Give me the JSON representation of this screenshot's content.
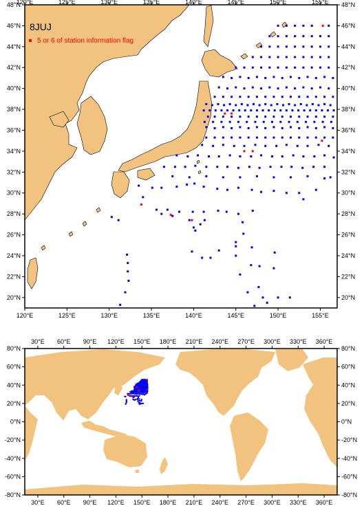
{
  "colors": {
    "land": "#f2c27f",
    "ocean": "#ffffff",
    "station": "#0000ff",
    "flagged": "#ff0000",
    "frame": "#000000"
  },
  "regional_map": {
    "title": "8JUJ",
    "legend_label": "5 or 6 of station information flag",
    "lon_ticks": [
      "120°E",
      "125°E",
      "130°E",
      "135°E",
      "140°E",
      "145°E",
      "150°E",
      "155°E"
    ],
    "lat_ticks": [
      "20°N",
      "22°N",
      "24°N",
      "26°N",
      "28°N",
      "30°N",
      "32°N",
      "34°N",
      "36°N",
      "38°N",
      "40°N",
      "42°N",
      "44°N",
      "46°N",
      "48°N"
    ],
    "lon_range": [
      120,
      157
    ],
    "lat_range": [
      19,
      48
    ],
    "stations_good": [
      [
        130.3,
        27.7
      ],
      [
        131.1,
        27.4
      ],
      [
        132.1,
        24.1
      ],
      [
        132.2,
        23.3
      ],
      [
        132.2,
        22.5
      ],
      [
        132.3,
        21.6
      ],
      [
        131.9,
        20.5
      ],
      [
        131.3,
        19.3
      ],
      [
        133.5,
        30.7
      ],
      [
        135.1,
        30.5
      ],
      [
        136.2,
        30.5
      ],
      [
        138.0,
        30.6
      ],
      [
        139.2,
        30.8
      ],
      [
        140.1,
        30.9
      ],
      [
        141.2,
        30.6
      ],
      [
        142.8,
        30.4
      ],
      [
        144.0,
        30.3
      ],
      [
        145.3,
        30.5
      ],
      [
        134.0,
        29.6
      ],
      [
        135.6,
        28.4
      ],
      [
        136.9,
        28.4
      ],
      [
        138.3,
        28.2
      ],
      [
        139.9,
        28.2
      ],
      [
        141.2,
        28.2
      ],
      [
        142.9,
        28.3
      ],
      [
        143.9,
        28.2
      ],
      [
        145.3,
        28.0
      ],
      [
        147.0,
        28.3
      ],
      [
        136.2,
        28.0
      ],
      [
        137.5,
        27.8
      ],
      [
        139.5,
        27.4
      ],
      [
        140.0,
        26.7
      ],
      [
        140.8,
        27.0
      ],
      [
        140.2,
        26.4
      ],
      [
        141.3,
        27.4
      ],
      [
        145.8,
        27.2
      ],
      [
        145.9,
        26.1
      ],
      [
        145.0,
        25.3
      ],
      [
        145.0,
        24.9
      ],
      [
        145.0,
        24.0
      ],
      [
        143.0,
        24.5
      ],
      [
        142.0,
        23.8
      ],
      [
        141.0,
        23.8
      ],
      [
        139.8,
        24.4
      ],
      [
        146.9,
        24.8
      ],
      [
        146.8,
        23.1
      ],
      [
        147.8,
        23.0
      ],
      [
        147.7,
        21.0
      ],
      [
        148.2,
        20.0
      ],
      [
        148.7,
        19.5
      ],
      [
        149.6,
        24.3
      ],
      [
        149.5,
        22.8
      ],
      [
        151.4,
        20.0
      ],
      [
        150.0,
        20.0
      ],
      [
        147.2,
        19.2
      ],
      [
        146.4,
        20.5
      ],
      [
        145.5,
        22.2
      ],
      [
        153.0,
        29.4
      ],
      [
        154.5,
        30.3
      ],
      [
        156.2,
        31.5
      ],
      [
        152.5,
        30.0
      ],
      [
        151.0,
        30.0
      ],
      [
        149.5,
        30.2
      ],
      [
        148.0,
        30.1
      ],
      [
        146.9,
        30.3
      ],
      [
        136.5,
        32.5
      ],
      [
        137.8,
        32.5
      ],
      [
        139.0,
        32.5
      ],
      [
        140.2,
        32.6
      ],
      [
        141.5,
        32.5
      ],
      [
        142.8,
        32.5
      ],
      [
        144.0,
        32.5
      ],
      [
        145.3,
        32.4
      ],
      [
        146.6,
        32.5
      ],
      [
        147.8,
        32.4
      ],
      [
        149.1,
        32.5
      ],
      [
        150.4,
        32.5
      ],
      [
        151.6,
        32.5
      ],
      [
        152.9,
        32.4
      ],
      [
        154.2,
        32.5
      ],
      [
        155.5,
        32.5
      ],
      [
        137.5,
        31.6
      ],
      [
        139.5,
        31.5
      ],
      [
        141.5,
        31.6
      ],
      [
        143.5,
        31.5
      ],
      [
        145.5,
        31.5
      ],
      [
        147.5,
        31.6
      ],
      [
        149.5,
        31.5
      ],
      [
        151.5,
        31.5
      ],
      [
        153.5,
        31.6
      ],
      [
        155.5,
        31.4
      ],
      [
        138.0,
        33.6
      ],
      [
        139.3,
        33.5
      ],
      [
        140.5,
        33.6
      ],
      [
        141.8,
        33.5
      ],
      [
        143.0,
        33.5
      ],
      [
        144.3,
        33.6
      ],
      [
        145.5,
        33.5
      ],
      [
        146.8,
        33.5
      ],
      [
        148.0,
        33.6
      ],
      [
        149.3,
        33.5
      ],
      [
        150.5,
        33.5
      ],
      [
        151.8,
        33.6
      ],
      [
        153.0,
        33.5
      ],
      [
        154.3,
        33.5
      ],
      [
        155.5,
        33.6
      ],
      [
        156.6,
        33.4
      ],
      [
        141.0,
        34.6
      ],
      [
        142.3,
        34.5
      ],
      [
        143.5,
        34.6
      ],
      [
        144.8,
        34.5
      ],
      [
        146.0,
        34.5
      ],
      [
        147.3,
        34.6
      ],
      [
        148.5,
        34.5
      ],
      [
        149.8,
        34.5
      ],
      [
        151.0,
        34.6
      ],
      [
        152.3,
        34.5
      ],
      [
        153.5,
        34.5
      ],
      [
        154.8,
        34.6
      ],
      [
        156.0,
        34.5
      ],
      [
        141.5,
        35.3
      ],
      [
        142.5,
        35.3
      ],
      [
        143.5,
        35.3
      ],
      [
        144.5,
        35.3
      ],
      [
        145.5,
        35.3
      ],
      [
        146.5,
        35.3
      ],
      [
        147.5,
        35.3
      ],
      [
        148.5,
        35.3
      ],
      [
        149.5,
        35.3
      ],
      [
        150.5,
        35.3
      ],
      [
        151.5,
        35.3
      ],
      [
        152.5,
        35.3
      ],
      [
        153.5,
        35.3
      ],
      [
        154.5,
        35.3
      ],
      [
        155.5,
        35.3
      ],
      [
        156.5,
        35.3
      ],
      [
        141.5,
        36.3
      ],
      [
        142.5,
        36.2
      ],
      [
        143.5,
        36.3
      ],
      [
        144.5,
        36.2
      ],
      [
        145.5,
        36.3
      ],
      [
        146.5,
        36.2
      ],
      [
        147.5,
        36.3
      ],
      [
        148.5,
        36.2
      ],
      [
        149.5,
        36.3
      ],
      [
        150.5,
        36.2
      ],
      [
        151.5,
        36.3
      ],
      [
        152.5,
        36.2
      ],
      [
        153.5,
        36.3
      ],
      [
        154.5,
        36.2
      ],
      [
        155.5,
        36.3
      ],
      [
        156.5,
        36.2
      ],
      [
        141.3,
        36.8
      ],
      [
        142.3,
        36.8
      ],
      [
        143.3,
        36.8
      ],
      [
        144.3,
        36.8
      ],
      [
        145.3,
        36.8
      ],
      [
        146.3,
        36.8
      ],
      [
        147.3,
        36.8
      ],
      [
        148.3,
        36.8
      ],
      [
        149.3,
        36.8
      ],
      [
        150.3,
        36.8
      ],
      [
        151.3,
        36.8
      ],
      [
        152.3,
        36.8
      ],
      [
        153.3,
        36.8
      ],
      [
        154.3,
        36.8
      ],
      [
        155.3,
        36.8
      ],
      [
        156.3,
        36.8
      ],
      [
        141.7,
        37.3
      ],
      [
        142.5,
        37.3
      ],
      [
        143.5,
        37.3
      ],
      [
        144.5,
        37.3
      ],
      [
        145.5,
        37.3
      ],
      [
        146.5,
        37.3
      ],
      [
        147.5,
        37.3
      ],
      [
        148.5,
        37.3
      ],
      [
        149.5,
        37.3
      ],
      [
        150.5,
        37.3
      ],
      [
        151.5,
        37.3
      ],
      [
        152.5,
        37.3
      ],
      [
        153.5,
        37.3
      ],
      [
        154.5,
        37.3
      ],
      [
        155.5,
        37.3
      ],
      [
        156.5,
        37.3
      ],
      [
        141.2,
        37.9
      ],
      [
        141.9,
        37.9
      ],
      [
        142.6,
        37.9
      ],
      [
        143.3,
        37.9
      ],
      [
        144.0,
        37.9
      ],
      [
        144.7,
        37.9
      ],
      [
        145.4,
        37.9
      ],
      [
        146.1,
        37.9
      ],
      [
        146.8,
        37.9
      ],
      [
        147.5,
        37.9
      ],
      [
        148.2,
        37.9
      ],
      [
        148.9,
        37.9
      ],
      [
        149.6,
        37.9
      ],
      [
        150.3,
        37.9
      ],
      [
        151.0,
        37.9
      ],
      [
        151.7,
        37.9
      ],
      [
        152.4,
        37.9
      ],
      [
        153.1,
        37.9
      ],
      [
        153.8,
        37.9
      ],
      [
        154.5,
        37.9
      ],
      [
        155.2,
        37.9
      ],
      [
        155.9,
        37.9
      ],
      [
        156.6,
        37.9
      ],
      [
        141.5,
        38.5
      ],
      [
        142.2,
        38.4
      ],
      [
        142.9,
        38.5
      ],
      [
        143.6,
        38.4
      ],
      [
        144.3,
        38.5
      ],
      [
        145.0,
        38.4
      ],
      [
        145.7,
        38.5
      ],
      [
        146.4,
        38.4
      ],
      [
        147.1,
        38.5
      ],
      [
        147.8,
        38.4
      ],
      [
        148.5,
        38.5
      ],
      [
        149.2,
        38.4
      ],
      [
        149.9,
        38.5
      ],
      [
        150.6,
        38.4
      ],
      [
        151.3,
        38.5
      ],
      [
        152.0,
        38.4
      ],
      [
        152.7,
        38.5
      ],
      [
        153.4,
        38.4
      ],
      [
        154.1,
        38.5
      ],
      [
        154.8,
        38.4
      ],
      [
        155.5,
        38.5
      ],
      [
        156.2,
        38.4
      ],
      [
        142.5,
        39.2
      ],
      [
        143.5,
        39.2
      ],
      [
        144.5,
        39.2
      ],
      [
        145.5,
        39.2
      ],
      [
        146.5,
        39.2
      ],
      [
        147.5,
        39.2
      ],
      [
        148.5,
        39.2
      ],
      [
        149.5,
        39.2
      ],
      [
        150.5,
        39.2
      ],
      [
        151.5,
        39.2
      ],
      [
        152.5,
        39.2
      ],
      [
        153.5,
        39.2
      ],
      [
        154.5,
        39.2
      ],
      [
        155.5,
        39.2
      ],
      [
        156.5,
        39.2
      ],
      [
        143.0,
        40.1
      ],
      [
        144.0,
        40.0
      ],
      [
        145.0,
        40.1
      ],
      [
        146.0,
        40.0
      ],
      [
        147.0,
        40.1
      ],
      [
        148.0,
        40.0
      ],
      [
        149.0,
        40.1
      ],
      [
        150.0,
        40.0
      ],
      [
        151.0,
        40.1
      ],
      [
        152.0,
        40.0
      ],
      [
        153.0,
        40.1
      ],
      [
        154.0,
        40.0
      ],
      [
        155.0,
        40.1
      ],
      [
        156.0,
        40.0
      ],
      [
        143.5,
        41.1
      ],
      [
        144.5,
        41.0
      ],
      [
        145.5,
        41.1
      ],
      [
        146.5,
        41.0
      ],
      [
        147.5,
        41.1
      ],
      [
        148.5,
        41.0
      ],
      [
        149.5,
        41.1
      ],
      [
        150.5,
        41.0
      ],
      [
        151.5,
        41.1
      ],
      [
        152.5,
        41.0
      ],
      [
        153.5,
        41.1
      ],
      [
        154.5,
        41.0
      ],
      [
        155.5,
        41.1
      ],
      [
        156.5,
        41.0
      ],
      [
        145.0,
        42.0
      ],
      [
        146.0,
        42.0
      ],
      [
        147.0,
        42.0
      ],
      [
        148.0,
        42.0
      ],
      [
        149.0,
        42.0
      ],
      [
        150.0,
        42.0
      ],
      [
        151.0,
        42.0
      ],
      [
        152.0,
        42.0
      ],
      [
        153.0,
        42.0
      ],
      [
        154.0,
        42.0
      ],
      [
        155.0,
        42.0
      ],
      [
        156.0,
        42.0
      ],
      [
        147.0,
        43.0
      ],
      [
        148.0,
        43.0
      ],
      [
        149.0,
        43.0
      ],
      [
        150.0,
        43.0
      ],
      [
        151.0,
        43.0
      ],
      [
        152.0,
        43.0
      ],
      [
        153.0,
        43.0
      ],
      [
        154.0,
        43.0
      ],
      [
        155.0,
        43.0
      ],
      [
        156.0,
        43.0
      ],
      [
        148.0,
        44.0
      ],
      [
        149.0,
        44.0
      ],
      [
        150.0,
        44.0
      ],
      [
        151.0,
        44.0
      ],
      [
        152.0,
        44.0
      ],
      [
        153.0,
        44.0
      ],
      [
        154.0,
        44.0
      ],
      [
        155.0,
        44.0
      ],
      [
        156.0,
        44.0
      ],
      [
        149.0,
        45.0
      ],
      [
        150.0,
        45.0
      ],
      [
        151.0,
        45.0
      ],
      [
        152.0,
        45.0
      ],
      [
        153.0,
        45.0
      ],
      [
        154.0,
        45.0
      ],
      [
        155.0,
        45.0
      ],
      [
        156.0,
        45.0
      ],
      [
        150.0,
        46.0
      ],
      [
        151.0,
        46.0
      ],
      [
        152.0,
        46.0
      ],
      [
        153.0,
        46.0
      ],
      [
        154.0,
        46.0
      ],
      [
        156.0,
        46.0
      ]
    ],
    "stations_flagged": [
      [
        143.7,
        37.6
      ],
      [
        144.5,
        37.6
      ],
      [
        133.8,
        28.9
      ],
      [
        137.3,
        27.9
      ],
      [
        139.8,
        27.4
      ],
      [
        155.3,
        46.0
      ],
      [
        146.0,
        34.0
      ],
      [
        147.0,
        34.0
      ],
      [
        155.2,
        35.0
      ]
    ]
  },
  "global_map": {
    "lon_ticks": [
      "30°E",
      "60°E",
      "90°E",
      "120°E",
      "150°E",
      "180°E",
      "210°E",
      "240°E",
      "270°E",
      "300°E",
      "330°E",
      "360°E"
    ],
    "lat_ticks": [
      "-80°N",
      "-60°N",
      "-40°N",
      "-20°N",
      "0°N",
      "20°N",
      "40°N",
      "60°N",
      "80°N"
    ],
    "lon_range": [
      15,
      375
    ],
    "lat_range": [
      -80,
      80
    ]
  }
}
